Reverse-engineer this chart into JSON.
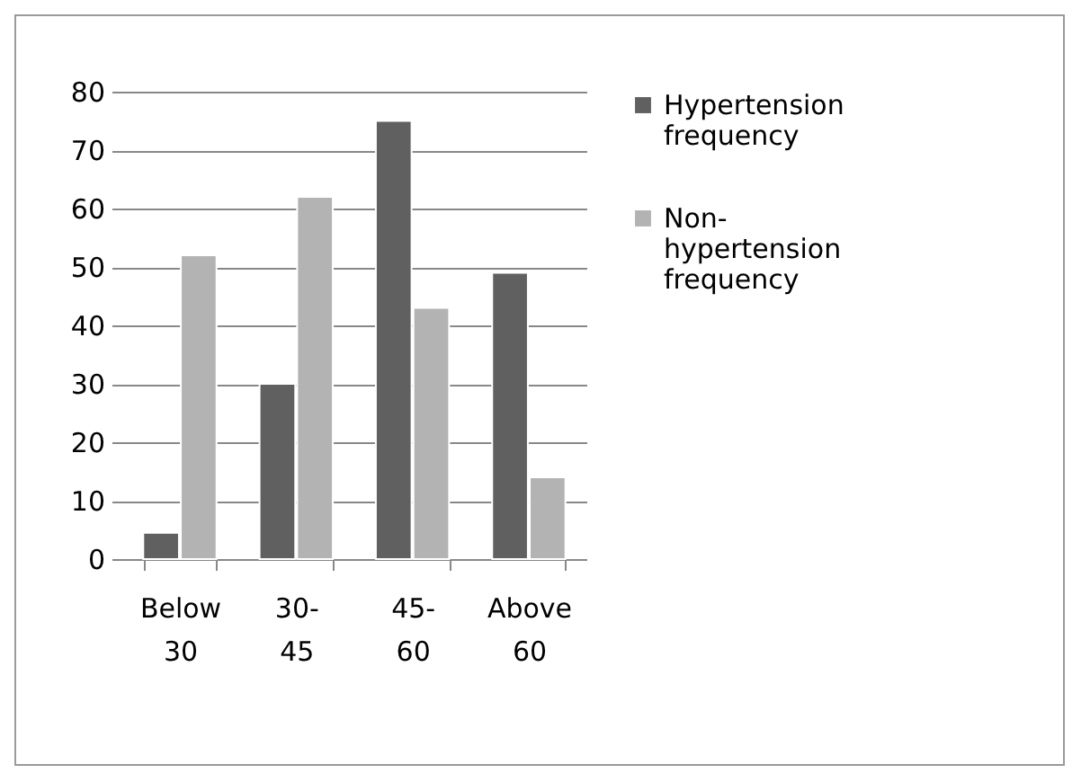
{
  "chart_data": {
    "type": "bar",
    "categories": [
      "Below 30",
      "30-45",
      "45-60",
      "Above 60"
    ],
    "series": [
      {
        "name": "Hypertension frequency",
        "color": "#606060",
        "values": [
          4.5,
          30,
          75,
          49
        ]
      },
      {
        "name": "Non-hypertension frequency",
        "color": "#b3b3b3",
        "values": [
          52,
          62,
          43,
          14
        ]
      }
    ],
    "ylim": [
      0,
      80
    ],
    "yticks": [
      0,
      10,
      20,
      30,
      40,
      50,
      60,
      70,
      80
    ],
    "grid": "y",
    "legend": "right"
  }
}
